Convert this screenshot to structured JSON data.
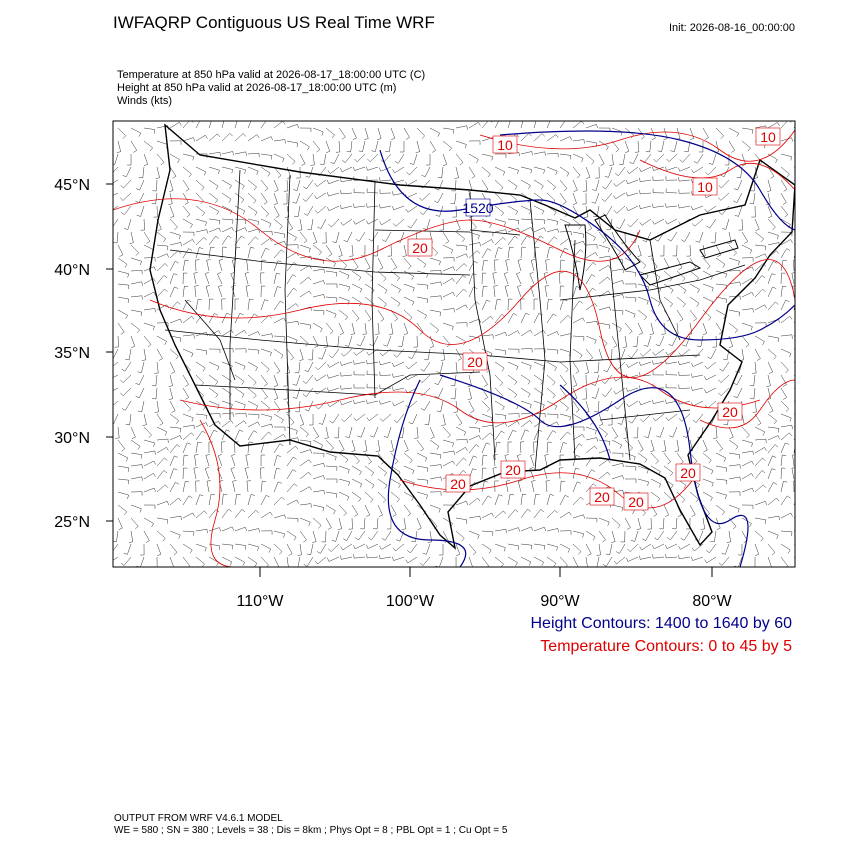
{
  "header": {
    "title": "IWFAQRP Contiguous US Real Time WRF",
    "init": "Init: 2026-08-16_00:00:00"
  },
  "fields": [
    "Temperature at 850 hPa valid at 2026-08-17_18:00:00 UTC   (C)",
    "Height at 850 hPa valid at 2026-08-17_18:00:00 UTC   (m)",
    "Winds   (kts)"
  ],
  "map": {
    "lat_labels": [
      "45°N",
      "40°N",
      "35°N",
      "30°N",
      "25°N"
    ],
    "lon_labels": [
      "110°W",
      "100°W",
      "90°W",
      "80°W"
    ],
    "contour_labels": [
      "10",
      "10",
      "10",
      "1520",
      "20",
      "20",
      "20",
      "20",
      "20",
      "20",
      "20",
      "20"
    ]
  },
  "legend": [
    "Height Contours: 1400 to 1640 by 60",
    "Temperature Contours: 0 to 45 by 5"
  ],
  "footer": [
    "OUTPUT FROM WRF V4.6.1 MODEL",
    "WE = 580 ; SN = 380 ; Levels = 38 ; Dis = 8km ; Phys Opt = 8 ; PBL Opt = 1 ; Cu Opt = 5"
  ]
}
